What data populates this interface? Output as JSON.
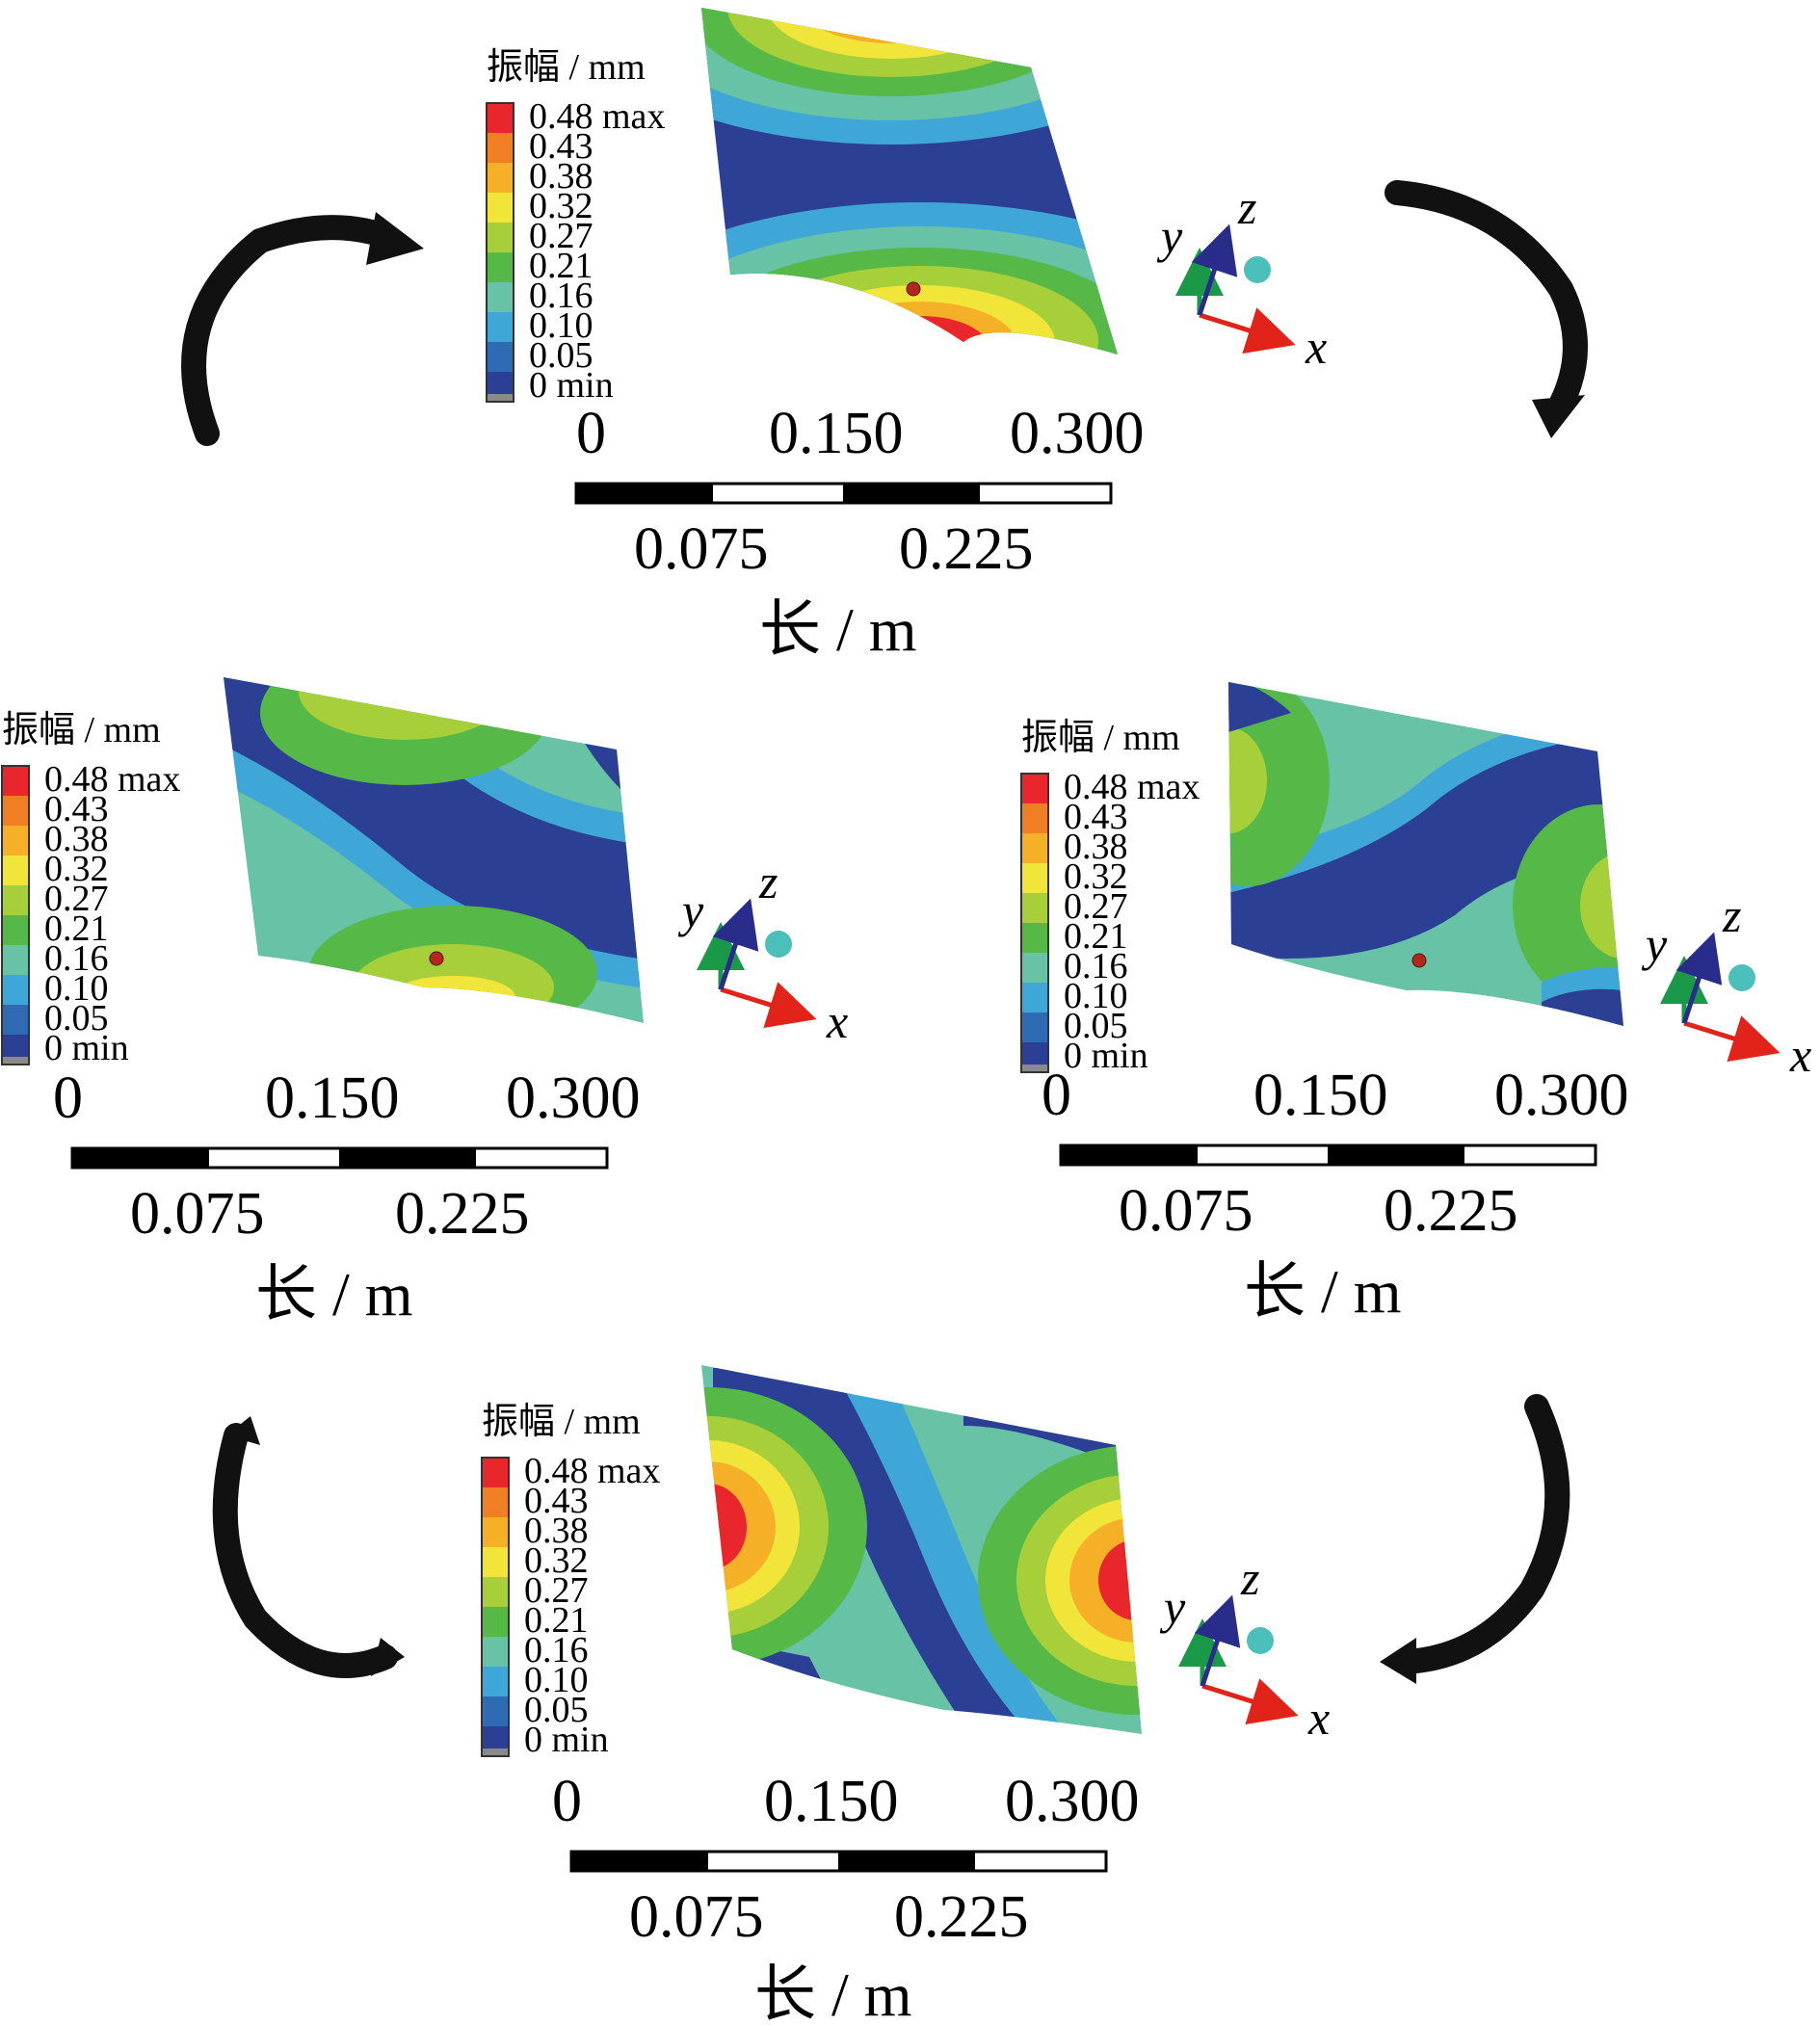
{
  "legend": {
    "title": "振幅 / mm",
    "labels": [
      "0.48 max",
      "0.43",
      "0.38",
      "0.32",
      "0.27",
      "0.21",
      "0.16",
      "0.10",
      "0.05",
      "0 min"
    ],
    "colors": [
      "#e8262b",
      "#f07f23",
      "#f5b028",
      "#f2e53a",
      "#a6cf3a",
      "#55b847",
      "#67c2a6",
      "#3fa7d7",
      "#2f6bb5",
      "#2b3f94"
    ]
  },
  "scale": {
    "top_labels": [
      "0",
      "0.150",
      "0.300"
    ],
    "bottom_labels": [
      "0.075",
      "0.225"
    ],
    "title": "长 / m"
  },
  "axes": {
    "x": "x",
    "y": "y",
    "z": "z"
  },
  "colors": {
    "x_axis": "#e2231a",
    "y_axis": "#1a9a48",
    "z_axis": "#2a2c8c",
    "dot": "#4bbfb9",
    "arrow": "#111111",
    "probe": "#b3261e"
  },
  "panels": [
    {
      "id": "top",
      "mode": "antisymmetric-x, max at top and bottom edges"
    },
    {
      "id": "left",
      "mode": "diagonal band"
    },
    {
      "id": "right",
      "mode": "diagonal band"
    },
    {
      "id": "bottom",
      "mode": "antisymmetric-y, max at left and right edges"
    }
  ],
  "arrows": [
    "top-left",
    "top-right",
    "bottom-left",
    "bottom-right"
  ]
}
